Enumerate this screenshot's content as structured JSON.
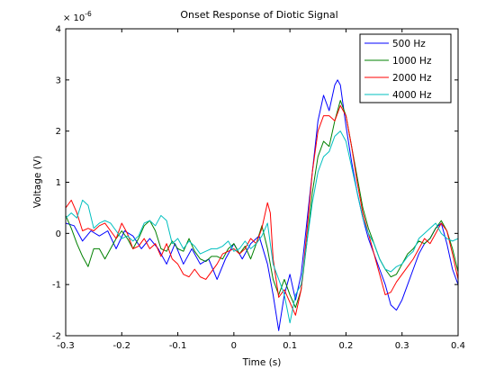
{
  "chart_data": {
    "type": "line",
    "title": "Onset Response of Diotic Signal",
    "xlabel": "Time (s)",
    "ylabel": "Voltage (V)",
    "y_multiplier": {
      "base": "× 10",
      "exponent": "-6"
    },
    "xlim": [
      -0.3,
      0.4
    ],
    "ylim": [
      -2,
      4
    ],
    "x_ticks": [
      -0.3,
      -0.2,
      -0.1,
      0,
      0.1,
      0.2,
      0.3,
      0.4
    ],
    "x_tick_labels": [
      "-0.3",
      "-0.2",
      "-0.1",
      "0",
      "0.1",
      "0.2",
      "0.3",
      "0.4"
    ],
    "y_ticks": [
      -2,
      -1,
      0,
      1,
      2,
      3,
      4
    ],
    "y_tick_labels": [
      "-2",
      "-1",
      "0",
      "1",
      "2",
      "3",
      "4"
    ],
    "grid": false,
    "legend_position": "top-right",
    "series": [
      {
        "name": "500 Hz",
        "color": "#0000ff",
        "points": [
          [
            -0.3,
            0.2
          ],
          [
            -0.285,
            0.15
          ],
          [
            -0.27,
            -0.15
          ],
          [
            -0.255,
            0.05
          ],
          [
            -0.24,
            -0.05
          ],
          [
            -0.225,
            0.05
          ],
          [
            -0.21,
            -0.3
          ],
          [
            -0.195,
            0.05
          ],
          [
            -0.18,
            -0.05
          ],
          [
            -0.165,
            -0.3
          ],
          [
            -0.15,
            -0.1
          ],
          [
            -0.135,
            -0.3
          ],
          [
            -0.12,
            -0.6
          ],
          [
            -0.105,
            -0.2
          ],
          [
            -0.09,
            -0.6
          ],
          [
            -0.075,
            -0.3
          ],
          [
            -0.06,
            -0.6
          ],
          [
            -0.045,
            -0.5
          ],
          [
            -0.03,
            -0.9
          ],
          [
            -0.015,
            -0.5
          ],
          [
            0,
            -0.2
          ],
          [
            0.015,
            -0.5
          ],
          [
            0.03,
            -0.2
          ],
          [
            0.045,
            -0.05
          ],
          [
            0.06,
            -0.6
          ],
          [
            0.07,
            -1.2
          ],
          [
            0.08,
            -1.9
          ],
          [
            0.09,
            -1.2
          ],
          [
            0.1,
            -0.8
          ],
          [
            0.11,
            -1.3
          ],
          [
            0.12,
            -0.8
          ],
          [
            0.13,
            0.2
          ],
          [
            0.14,
            1.2
          ],
          [
            0.15,
            2.2
          ],
          [
            0.16,
            2.7
          ],
          [
            0.17,
            2.4
          ],
          [
            0.18,
            2.9
          ],
          [
            0.185,
            3.0
          ],
          [
            0.19,
            2.9
          ],
          [
            0.2,
            2.1
          ],
          [
            0.21,
            1.4
          ],
          [
            0.22,
            0.8
          ],
          [
            0.23,
            0.3
          ],
          [
            0.24,
            -0.1
          ],
          [
            0.25,
            -0.4
          ],
          [
            0.26,
            -0.7
          ],
          [
            0.27,
            -1.0
          ],
          [
            0.28,
            -1.4
          ],
          [
            0.29,
            -1.5
          ],
          [
            0.3,
            -1.3
          ],
          [
            0.31,
            -1.0
          ],
          [
            0.32,
            -0.7
          ],
          [
            0.33,
            -0.4
          ],
          [
            0.34,
            -0.2
          ],
          [
            0.35,
            -0.1
          ],
          [
            0.36,
            0.1
          ],
          [
            0.37,
            0.2
          ],
          [
            0.38,
            -0.2
          ],
          [
            0.39,
            -0.7
          ],
          [
            0.4,
            -1.0
          ]
        ]
      },
      {
        "name": "1000 Hz",
        "color": "#008000",
        "points": [
          [
            -0.3,
            0.35
          ],
          [
            -0.29,
            0.1
          ],
          [
            -0.28,
            -0.2
          ],
          [
            -0.27,
            -0.45
          ],
          [
            -0.26,
            -0.65
          ],
          [
            -0.25,
            -0.3
          ],
          [
            -0.24,
            -0.3
          ],
          [
            -0.23,
            -0.5
          ],
          [
            -0.22,
            -0.3
          ],
          [
            -0.21,
            -0.1
          ],
          [
            -0.2,
            0.05
          ],
          [
            -0.19,
            -0.1
          ],
          [
            -0.18,
            -0.3
          ],
          [
            -0.17,
            -0.1
          ],
          [
            -0.16,
            0.15
          ],
          [
            -0.15,
            0.25
          ],
          [
            -0.14,
            0.05
          ],
          [
            -0.13,
            -0.3
          ],
          [
            -0.12,
            -0.35
          ],
          [
            -0.11,
            -0.15
          ],
          [
            -0.1,
            -0.3
          ],
          [
            -0.09,
            -0.35
          ],
          [
            -0.08,
            -0.1
          ],
          [
            -0.07,
            -0.35
          ],
          [
            -0.06,
            -0.5
          ],
          [
            -0.05,
            -0.55
          ],
          [
            -0.04,
            -0.45
          ],
          [
            -0.03,
            -0.45
          ],
          [
            -0.02,
            -0.5
          ],
          [
            -0.01,
            -0.3
          ],
          [
            0,
            -0.2
          ],
          [
            0.01,
            -0.4
          ],
          [
            0.02,
            -0.25
          ],
          [
            0.03,
            -0.5
          ],
          [
            0.04,
            -0.2
          ],
          [
            0.05,
            0.15
          ],
          [
            0.06,
            -0.3
          ],
          [
            0.07,
            -0.9
          ],
          [
            0.08,
            -1.2
          ],
          [
            0.09,
            -0.9
          ],
          [
            0.1,
            -1.2
          ],
          [
            0.11,
            -1.45
          ],
          [
            0.12,
            -1.1
          ],
          [
            0.13,
            -0.2
          ],
          [
            0.14,
            0.8
          ],
          [
            0.15,
            1.5
          ],
          [
            0.16,
            1.8
          ],
          [
            0.17,
            1.7
          ],
          [
            0.18,
            2.2
          ],
          [
            0.19,
            2.6
          ],
          [
            0.2,
            2.3
          ],
          [
            0.21,
            1.7
          ],
          [
            0.22,
            1.1
          ],
          [
            0.23,
            0.5
          ],
          [
            0.24,
            0.1
          ],
          [
            0.25,
            -0.2
          ],
          [
            0.26,
            -0.5
          ],
          [
            0.27,
            -0.7
          ],
          [
            0.28,
            -0.85
          ],
          [
            0.29,
            -0.8
          ],
          [
            0.3,
            -0.6
          ],
          [
            0.31,
            -0.4
          ],
          [
            0.32,
            -0.3
          ],
          [
            0.33,
            -0.15
          ],
          [
            0.34,
            -0.2
          ],
          [
            0.35,
            -0.1
          ],
          [
            0.36,
            0.1
          ],
          [
            0.37,
            0.25
          ],
          [
            0.38,
            0.05
          ],
          [
            0.39,
            -0.3
          ],
          [
            0.4,
            -0.75
          ]
        ]
      },
      {
        "name": "2000 Hz",
        "color": "#ff0000",
        "points": [
          [
            -0.3,
            0.5
          ],
          [
            -0.29,
            0.65
          ],
          [
            -0.28,
            0.4
          ],
          [
            -0.27,
            0.05
          ],
          [
            -0.26,
            0.1
          ],
          [
            -0.25,
            0.05
          ],
          [
            -0.24,
            0.15
          ],
          [
            -0.23,
            0.2
          ],
          [
            -0.22,
            0.05
          ],
          [
            -0.21,
            -0.1
          ],
          [
            -0.2,
            0.2
          ],
          [
            -0.19,
            0.0
          ],
          [
            -0.18,
            -0.3
          ],
          [
            -0.17,
            -0.25
          ],
          [
            -0.16,
            -0.1
          ],
          [
            -0.15,
            -0.3
          ],
          [
            -0.14,
            -0.2
          ],
          [
            -0.13,
            -0.45
          ],
          [
            -0.12,
            -0.2
          ],
          [
            -0.11,
            -0.5
          ],
          [
            -0.1,
            -0.6
          ],
          [
            -0.09,
            -0.8
          ],
          [
            -0.08,
            -0.85
          ],
          [
            -0.07,
            -0.7
          ],
          [
            -0.06,
            -0.85
          ],
          [
            -0.05,
            -0.9
          ],
          [
            -0.04,
            -0.75
          ],
          [
            -0.03,
            -0.6
          ],
          [
            -0.02,
            -0.4
          ],
          [
            -0.01,
            -0.35
          ],
          [
            0,
            -0.3
          ],
          [
            0.01,
            -0.4
          ],
          [
            0.02,
            -0.3
          ],
          [
            0.03,
            -0.1
          ],
          [
            0.04,
            -0.2
          ],
          [
            0.05,
            0.1
          ],
          [
            0.06,
            0.6
          ],
          [
            0.065,
            0.4
          ],
          [
            0.07,
            -0.5
          ],
          [
            0.08,
            -1.25
          ],
          [
            0.09,
            -1.1
          ],
          [
            0.1,
            -1.35
          ],
          [
            0.11,
            -1.6
          ],
          [
            0.12,
            -1.1
          ],
          [
            0.13,
            0.0
          ],
          [
            0.14,
            1.2
          ],
          [
            0.15,
            2.0
          ],
          [
            0.16,
            2.3
          ],
          [
            0.17,
            2.3
          ],
          [
            0.18,
            2.2
          ],
          [
            0.19,
            2.5
          ],
          [
            0.2,
            2.3
          ],
          [
            0.21,
            1.7
          ],
          [
            0.22,
            1.0
          ],
          [
            0.23,
            0.4
          ],
          [
            0.24,
            0.0
          ],
          [
            0.25,
            -0.4
          ],
          [
            0.26,
            -0.8
          ],
          [
            0.27,
            -1.2
          ],
          [
            0.28,
            -1.15
          ],
          [
            0.29,
            -0.95
          ],
          [
            0.3,
            -0.8
          ],
          [
            0.31,
            -0.65
          ],
          [
            0.32,
            -0.5
          ],
          [
            0.33,
            -0.3
          ],
          [
            0.34,
            -0.1
          ],
          [
            0.35,
            -0.2
          ],
          [
            0.36,
            0.0
          ],
          [
            0.37,
            0.2
          ],
          [
            0.38,
            0.05
          ],
          [
            0.39,
            -0.4
          ],
          [
            0.4,
            -0.9
          ]
        ]
      },
      {
        "name": "4000 Hz",
        "color": "#00bfbf",
        "points": [
          [
            -0.3,
            0.3
          ],
          [
            -0.29,
            0.4
          ],
          [
            -0.28,
            0.3
          ],
          [
            -0.27,
            0.65
          ],
          [
            -0.26,
            0.55
          ],
          [
            -0.25,
            0.1
          ],
          [
            -0.24,
            0.2
          ],
          [
            -0.23,
            0.25
          ],
          [
            -0.22,
            0.2
          ],
          [
            -0.21,
            0.05
          ],
          [
            -0.2,
            -0.1
          ],
          [
            -0.19,
            -0.05
          ],
          [
            -0.18,
            -0.15
          ],
          [
            -0.17,
            -0.05
          ],
          [
            -0.16,
            0.2
          ],
          [
            -0.15,
            0.25
          ],
          [
            -0.14,
            0.15
          ],
          [
            -0.13,
            0.35
          ],
          [
            -0.12,
            0.25
          ],
          [
            -0.11,
            -0.2
          ],
          [
            -0.1,
            -0.1
          ],
          [
            -0.09,
            -0.3
          ],
          [
            -0.08,
            -0.15
          ],
          [
            -0.07,
            -0.25
          ],
          [
            -0.06,
            -0.4
          ],
          [
            -0.05,
            -0.35
          ],
          [
            -0.04,
            -0.3
          ],
          [
            -0.03,
            -0.3
          ],
          [
            -0.02,
            -0.25
          ],
          [
            -0.01,
            -0.15
          ],
          [
            0,
            -0.35
          ],
          [
            0.01,
            -0.3
          ],
          [
            0.02,
            -0.15
          ],
          [
            0.03,
            -0.3
          ],
          [
            0.04,
            -0.2
          ],
          [
            0.05,
            -0.05
          ],
          [
            0.06,
            0.2
          ],
          [
            0.07,
            -0.6
          ],
          [
            0.08,
            -0.9
          ],
          [
            0.09,
            -1.2
          ],
          [
            0.1,
            -1.75
          ],
          [
            0.11,
            -1.2
          ],
          [
            0.12,
            -1.0
          ],
          [
            0.13,
            -0.2
          ],
          [
            0.14,
            0.6
          ],
          [
            0.15,
            1.2
          ],
          [
            0.16,
            1.5
          ],
          [
            0.17,
            1.6
          ],
          [
            0.18,
            1.9
          ],
          [
            0.19,
            2.0
          ],
          [
            0.2,
            1.8
          ],
          [
            0.21,
            1.3
          ],
          [
            0.22,
            0.8
          ],
          [
            0.23,
            0.3
          ],
          [
            0.24,
            0.0
          ],
          [
            0.25,
            -0.2
          ],
          [
            0.26,
            -0.5
          ],
          [
            0.27,
            -0.7
          ],
          [
            0.28,
            -0.75
          ],
          [
            0.29,
            -0.65
          ],
          [
            0.3,
            -0.6
          ],
          [
            0.31,
            -0.45
          ],
          [
            0.32,
            -0.35
          ],
          [
            0.33,
            -0.1
          ],
          [
            0.34,
            0.0
          ],
          [
            0.35,
            0.1
          ],
          [
            0.36,
            0.2
          ],
          [
            0.37,
            0.0
          ],
          [
            0.38,
            -0.1
          ],
          [
            0.39,
            -0.15
          ],
          [
            0.4,
            -0.1
          ]
        ]
      }
    ]
  }
}
